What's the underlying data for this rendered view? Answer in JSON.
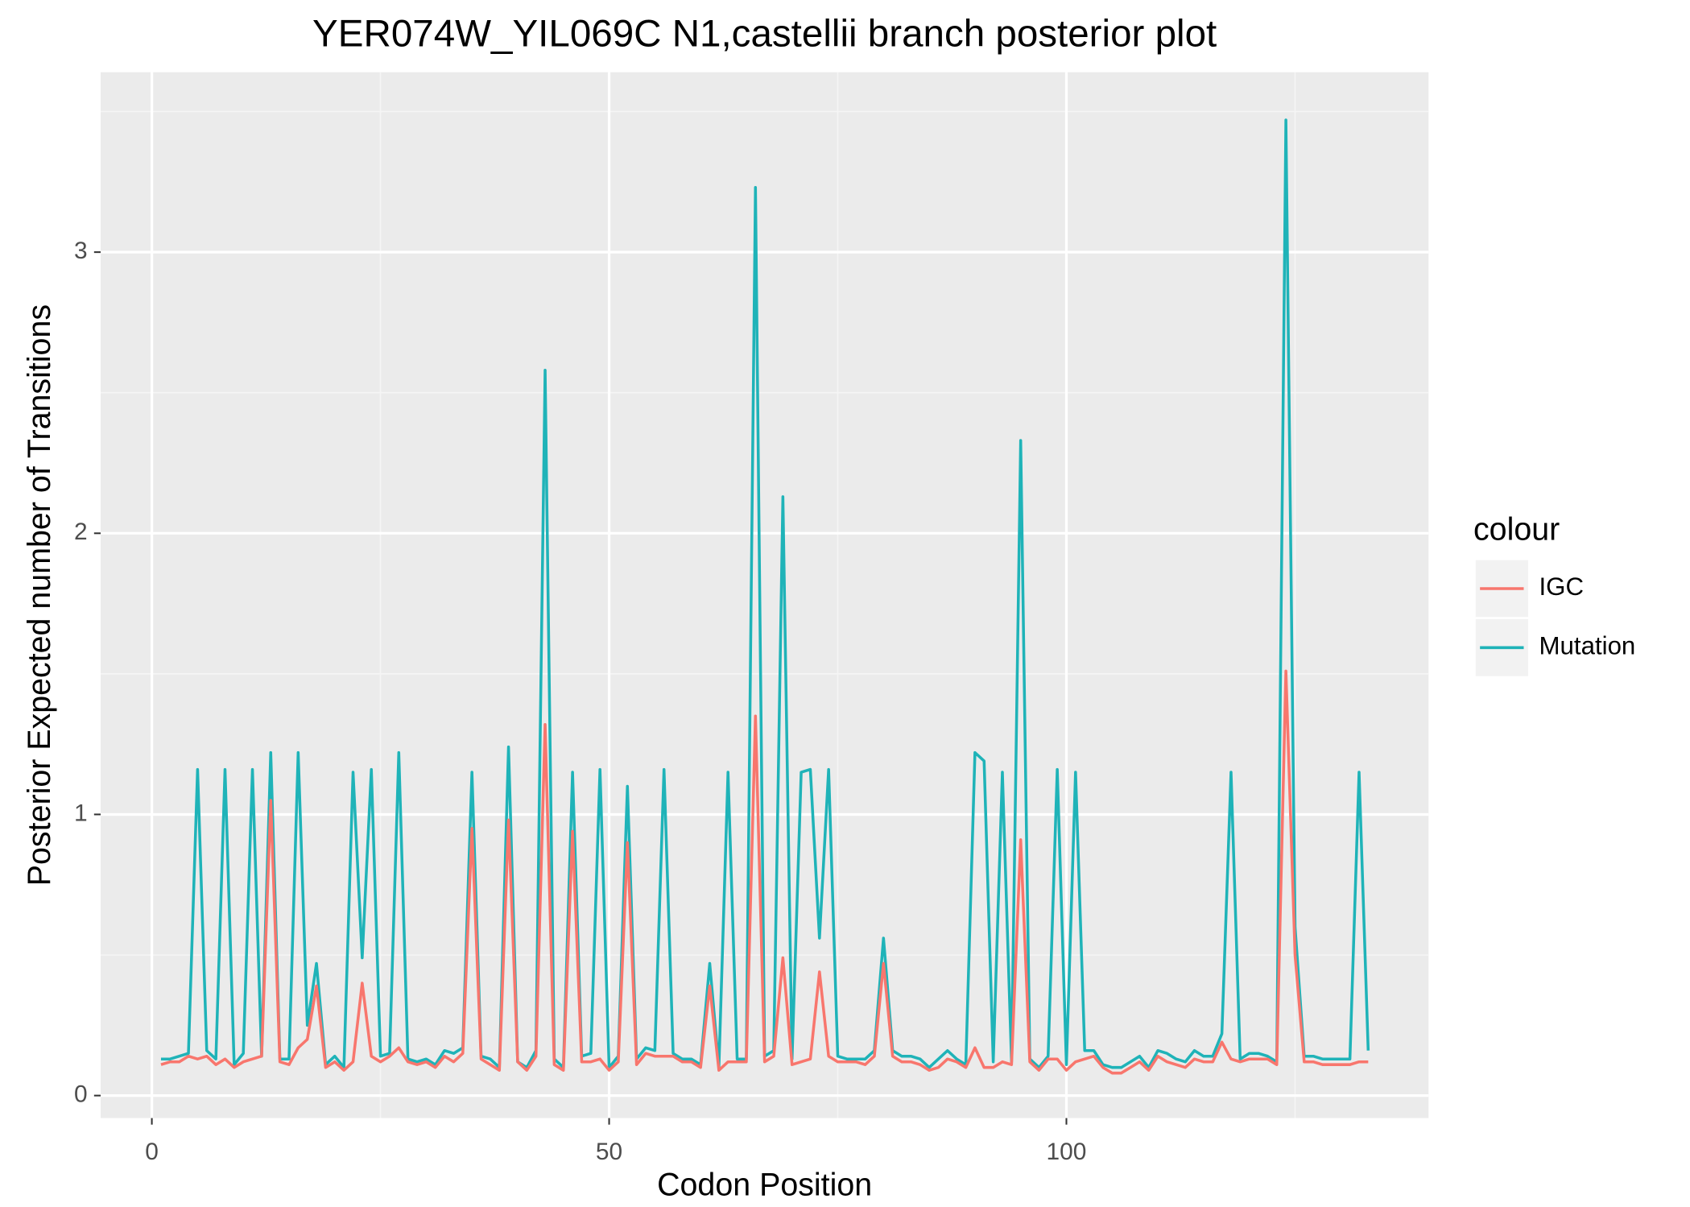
{
  "chart_data": {
    "type": "line",
    "title": "YER074W_YIL069C N1,castellii branch posterior plot",
    "x_label": "Codon Position",
    "y_label": "Posterior Expected number of Transitions",
    "legend_title": "colour",
    "legend_position": "right",
    "grid": true,
    "xlim": [
      -5.6,
      139.6
    ],
    "xticks": [
      0,
      50,
      100
    ],
    "ylim": [
      -0.08,
      3.64
    ],
    "yticks": [
      0,
      1,
      2,
      3
    ],
    "x": [
      1,
      2,
      3,
      4,
      5,
      6,
      7,
      8,
      9,
      10,
      11,
      12,
      13,
      14,
      15,
      16,
      17,
      18,
      19,
      20,
      21,
      22,
      23,
      24,
      25,
      26,
      27,
      28,
      29,
      30,
      31,
      32,
      33,
      34,
      35,
      36,
      37,
      38,
      39,
      40,
      41,
      42,
      43,
      44,
      45,
      46,
      47,
      48,
      49,
      50,
      51,
      52,
      53,
      54,
      55,
      56,
      57,
      58,
      59,
      60,
      61,
      62,
      63,
      64,
      65,
      66,
      67,
      68,
      69,
      70,
      71,
      72,
      73,
      74,
      75,
      76,
      77,
      78,
      79,
      80,
      81,
      82,
      83,
      84,
      85,
      86,
      87,
      88,
      89,
      90,
      91,
      92,
      93,
      94,
      95,
      96,
      97,
      98,
      99,
      100,
      101,
      102,
      103,
      104,
      105,
      106,
      107,
      108,
      109,
      110,
      111,
      112,
      113,
      114,
      115,
      116,
      117,
      118,
      119,
      120,
      121,
      122,
      123,
      124,
      125,
      126,
      127,
      128,
      129,
      130,
      131,
      132,
      133
    ],
    "series": [
      {
        "name": "IGC",
        "color": "#F8766D",
        "values": [
          0.11,
          0.12,
          0.12,
          0.14,
          0.13,
          0.14,
          0.11,
          0.13,
          0.1,
          0.12,
          0.13,
          0.14,
          1.05,
          0.12,
          0.11,
          0.17,
          0.2,
          0.39,
          0.1,
          0.12,
          0.09,
          0.12,
          0.4,
          0.14,
          0.12,
          0.14,
          0.17,
          0.12,
          0.11,
          0.12,
          0.1,
          0.14,
          0.12,
          0.15,
          0.95,
          0.13,
          0.11,
          0.09,
          0.98,
          0.12,
          0.09,
          0.14,
          1.32,
          0.11,
          0.09,
          0.94,
          0.12,
          0.12,
          0.13,
          0.09,
          0.12,
          0.9,
          0.11,
          0.15,
          0.14,
          0.14,
          0.14,
          0.12,
          0.12,
          0.1,
          0.39,
          0.09,
          0.12,
          0.12,
          0.12,
          1.35,
          0.12,
          0.14,
          0.49,
          0.11,
          0.12,
          0.13,
          0.44,
          0.14,
          0.12,
          0.12,
          0.12,
          0.11,
          0.14,
          0.47,
          0.14,
          0.12,
          0.12,
          0.11,
          0.09,
          0.1,
          0.13,
          0.12,
          0.1,
          0.17,
          0.1,
          0.1,
          0.12,
          0.11,
          0.91,
          0.12,
          0.09,
          0.13,
          0.13,
          0.09,
          0.12,
          0.13,
          0.14,
          0.1,
          0.08,
          0.08,
          0.1,
          0.12,
          0.09,
          0.14,
          0.12,
          0.11,
          0.1,
          0.13,
          0.12,
          0.12,
          0.19,
          0.13,
          0.12,
          0.13,
          0.13,
          0.13,
          0.11,
          1.51,
          0.5,
          0.12,
          0.12,
          0.11,
          0.11,
          0.11,
          0.11,
          0.12,
          0.12
        ]
      },
      {
        "name": "Mutation",
        "color": "#1FB3B8",
        "values": [
          0.13,
          0.13,
          0.14,
          0.15,
          1.16,
          0.16,
          0.13,
          1.16,
          0.11,
          0.15,
          1.16,
          0.14,
          1.22,
          0.13,
          0.13,
          1.22,
          0.25,
          0.47,
          0.11,
          0.14,
          0.1,
          1.15,
          0.49,
          1.16,
          0.14,
          0.15,
          1.22,
          0.13,
          0.12,
          0.13,
          0.11,
          0.16,
          0.15,
          0.17,
          1.15,
          0.14,
          0.13,
          0.1,
          1.24,
          0.12,
          0.1,
          0.16,
          2.58,
          0.13,
          0.1,
          1.15,
          0.14,
          0.15,
          1.16,
          0.1,
          0.14,
          1.1,
          0.13,
          0.17,
          0.16,
          1.16,
          0.15,
          0.13,
          0.13,
          0.11,
          0.47,
          0.1,
          1.15,
          0.13,
          0.13,
          3.23,
          0.14,
          0.16,
          2.13,
          0.13,
          1.15,
          1.16,
          0.56,
          1.16,
          0.14,
          0.13,
          0.13,
          0.13,
          0.16,
          0.56,
          0.16,
          0.14,
          0.14,
          0.13,
          0.1,
          0.13,
          0.16,
          0.13,
          0.11,
          1.22,
          1.19,
          0.12,
          1.15,
          0.12,
          2.33,
          0.13,
          0.1,
          0.14,
          1.16,
          0.11,
          1.15,
          0.16,
          0.16,
          0.11,
          0.1,
          0.1,
          0.12,
          0.14,
          0.1,
          0.16,
          0.15,
          0.13,
          0.12,
          0.16,
          0.14,
          0.14,
          0.22,
          1.15,
          0.13,
          0.15,
          0.15,
          0.14,
          0.12,
          3.47,
          0.6,
          0.14,
          0.14,
          0.13,
          0.13,
          0.13,
          0.13,
          1.15,
          0.16
        ]
      }
    ]
  }
}
